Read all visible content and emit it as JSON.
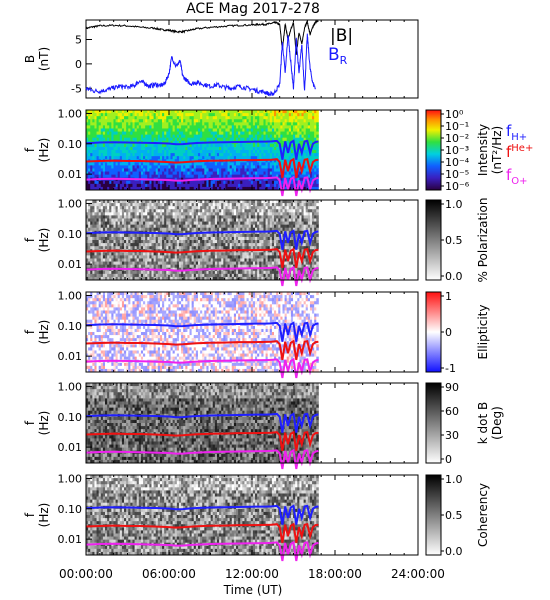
{
  "title": "ACE Mag 2017-278",
  "chart_data": [
    {
      "type": "line",
      "panel": "magnetic-field",
      "ylabel": "B",
      "yunit": "(nT)",
      "ylim": [
        -7,
        9
      ],
      "yticks": [
        "5",
        "0",
        "-5"
      ],
      "ytick_values": [
        5,
        0,
        -5
      ],
      "xlim_hours": [
        0,
        24
      ],
      "series": [
        {
          "name": "|B|",
          "color": "#000000",
          "x": [
            0,
            0.5,
            1,
            2,
            3,
            4,
            5,
            5.5,
            6,
            6.5,
            7,
            7.5,
            8,
            9,
            10,
            11,
            12,
            12.5,
            13,
            13.4,
            13.7,
            14,
            14.2,
            14.4,
            14.6,
            14.8,
            15,
            15.2,
            15.4,
            15.6,
            15.8,
            16,
            16.2,
            16.4,
            16.6,
            16.8
          ],
          "y": [
            7.3,
            7.6,
            7.8,
            7.9,
            7.8,
            7.5,
            7.3,
            7.0,
            6.9,
            6.6,
            6.6,
            6.9,
            7.2,
            7.5,
            7.7,
            7.9,
            8.0,
            8.1,
            8.1,
            8.3,
            8.5,
            8.0,
            3.0,
            8.2,
            5.0,
            7.0,
            8.4,
            2.0,
            6.5,
            4.0,
            7.5,
            8.6,
            6.0,
            7.6,
            8.6,
            8.8
          ]
        },
        {
          "name": "BR",
          "color": "#1a1aff",
          "x": [
            0,
            0.5,
            1,
            1.5,
            2,
            2.5,
            3,
            3.5,
            3.8,
            4.2,
            4.6,
            5.0,
            5.4,
            5.7,
            6.0,
            6.2,
            6.5,
            6.8,
            7.0,
            7.3,
            7.6,
            8,
            8.5,
            9,
            9.5,
            10,
            10.5,
            11,
            11.5,
            12,
            12.5,
            13,
            13.3,
            13.6,
            14,
            14.2,
            14.4,
            14.6,
            14.8,
            15,
            15.2,
            15.4,
            15.6,
            15.8,
            16,
            16.2,
            16.4,
            16.6
          ],
          "y": [
            -5.0,
            -5.5,
            -5.6,
            -5.3,
            -4.9,
            -4.6,
            -4.8,
            -4.5,
            -3.6,
            -3.9,
            -4.6,
            -4.2,
            -4.5,
            -4.0,
            -2.0,
            1.5,
            -0.5,
            0.5,
            -2.5,
            -3.5,
            -4.1,
            -3.8,
            -4.2,
            -4.6,
            -4.3,
            -4.8,
            -5.0,
            -4.6,
            -4.9,
            -5.2,
            -5.6,
            -5.8,
            -6.3,
            -6.0,
            -4.2,
            4.5,
            -2.0,
            6.0,
            0.5,
            -5.0,
            5.0,
            -2.0,
            4.0,
            -5.5,
            6.0,
            -1.0,
            -4.0,
            -5.0
          ]
        }
      ],
      "legend": [
        "|B|",
        "BR"
      ],
      "legend_placement": "top-right"
    },
    {
      "type": "heatmap",
      "panel": "intensity",
      "ylabel": "f",
      "yunit": "(Hz)",
      "scale": "log",
      "ylim": [
        0.003,
        1.3
      ],
      "yticks": [
        "1.00",
        "0.10",
        "0.01"
      ],
      "ytick_values": [
        1,
        0.1,
        0.01
      ],
      "data_end_hours": 16.8,
      "colorbar": {
        "label": "Intensity",
        "unit": "(nT²/Hz)",
        "ticks": [
          "10⁰",
          "10⁻¹",
          "10⁻²",
          "10⁻³",
          "10⁻⁴",
          "10⁻⁵",
          "10⁻⁶"
        ],
        "colormap": "rainbow"
      },
      "legend": [
        "fH+",
        "fHe+",
        "fO+"
      ],
      "legend_placement": "right"
    },
    {
      "type": "heatmap",
      "panel": "polarization",
      "ylabel": "f",
      "yunit": "(Hz)",
      "colorbar": {
        "label": "% Polarization",
        "ticks": [
          "1.0",
          "0.5",
          "0.0"
        ],
        "colormap": "gray"
      }
    },
    {
      "type": "heatmap",
      "panel": "ellipticity",
      "ylabel": "f",
      "yunit": "(Hz)",
      "colorbar": {
        "label": "Ellipticity",
        "ticks": [
          "1",
          "0",
          "-1"
        ],
        "colormap": "blue-white-red"
      }
    },
    {
      "type": "heatmap",
      "panel": "k-dot-b",
      "ylabel": "f",
      "yunit": "(Hz)",
      "colorbar": {
        "label": "k dot B",
        "unit": "(Deg)",
        "ticks": [
          "90",
          "60",
          "30",
          "0"
        ],
        "colormap": "gray"
      }
    },
    {
      "type": "heatmap",
      "panel": "coherency",
      "ylabel": "f",
      "yunit": "(Hz)",
      "colorbar": {
        "label": "Coherency",
        "ticks": [
          "1.0",
          "0.5",
          "0.0"
        ],
        "colormap": "gray"
      }
    }
  ],
  "gyrofrequency_lines": [
    {
      "name": "fH+",
      "color": "#1f1fff",
      "x": [
        0,
        1,
        2,
        3,
        4,
        5,
        6,
        6.5,
        7,
        7.5,
        8,
        9,
        10,
        11,
        12,
        13,
        13.4,
        13.8,
        14.0,
        14.2,
        14.4,
        14.6,
        14.8,
        15.0,
        15.2,
        15.4,
        15.6,
        15.8,
        16.0,
        16.2,
        16.4,
        16.6,
        16.8
      ],
      "y": [
        0.105,
        0.11,
        0.112,
        0.11,
        0.108,
        0.106,
        0.102,
        0.097,
        0.098,
        0.102,
        0.106,
        0.11,
        0.112,
        0.115,
        0.117,
        0.118,
        0.12,
        0.125,
        0.1,
        0.03,
        0.12,
        0.05,
        0.11,
        0.125,
        0.03,
        0.1,
        0.05,
        0.12,
        0.125,
        0.05,
        0.1,
        0.115,
        0.12
      ]
    },
    {
      "name": "fHe+",
      "color": "#ee1111",
      "x": [
        0,
        1,
        2,
        3,
        4,
        5,
        6,
        6.5,
        7,
        7.5,
        8,
        9,
        10,
        11,
        12,
        13,
        13.4,
        13.8,
        14.0,
        14.2,
        14.4,
        14.6,
        14.8,
        15.0,
        15.2,
        15.4,
        15.6,
        15.8,
        16.0,
        16.2,
        16.4,
        16.6,
        16.8
      ],
      "y": [
        0.026,
        0.027,
        0.028,
        0.027,
        0.027,
        0.026,
        0.025,
        0.024,
        0.0245,
        0.0255,
        0.0265,
        0.0275,
        0.028,
        0.029,
        0.029,
        0.0295,
        0.03,
        0.031,
        0.025,
        0.0075,
        0.03,
        0.0125,
        0.0275,
        0.031,
        0.0075,
        0.025,
        0.0125,
        0.03,
        0.031,
        0.0125,
        0.025,
        0.029,
        0.03
      ]
    },
    {
      "name": "fO+",
      "color": "#ee22ee",
      "x": [
        0,
        1,
        2,
        3,
        4,
        5,
        6,
        6.5,
        7,
        7.5,
        8,
        9,
        10,
        11,
        12,
        13,
        13.4,
        13.8,
        14.0,
        14.2,
        14.4,
        14.6,
        14.8,
        15.0,
        15.2,
        15.4,
        15.6,
        15.8,
        16.0,
        16.2,
        16.4,
        16.6,
        16.8
      ],
      "y": [
        0.0066,
        0.0069,
        0.007,
        0.0069,
        0.0068,
        0.0066,
        0.0064,
        0.0061,
        0.0061,
        0.0064,
        0.0066,
        0.0069,
        0.007,
        0.0072,
        0.0073,
        0.0074,
        0.0075,
        0.0078,
        0.0062,
        0.0019,
        0.0075,
        0.0031,
        0.0069,
        0.0078,
        0.0019,
        0.0062,
        0.0031,
        0.0075,
        0.0078,
        0.0031,
        0.0062,
        0.0072,
        0.0075
      ]
    }
  ],
  "xaxis": {
    "label": "Time (UT)",
    "ticks": [
      "00:00:00",
      "06:00:00",
      "12:00:00",
      "18:00:00",
      "24:00:00"
    ],
    "tick_hours": [
      0,
      6,
      12,
      18,
      24
    ]
  }
}
